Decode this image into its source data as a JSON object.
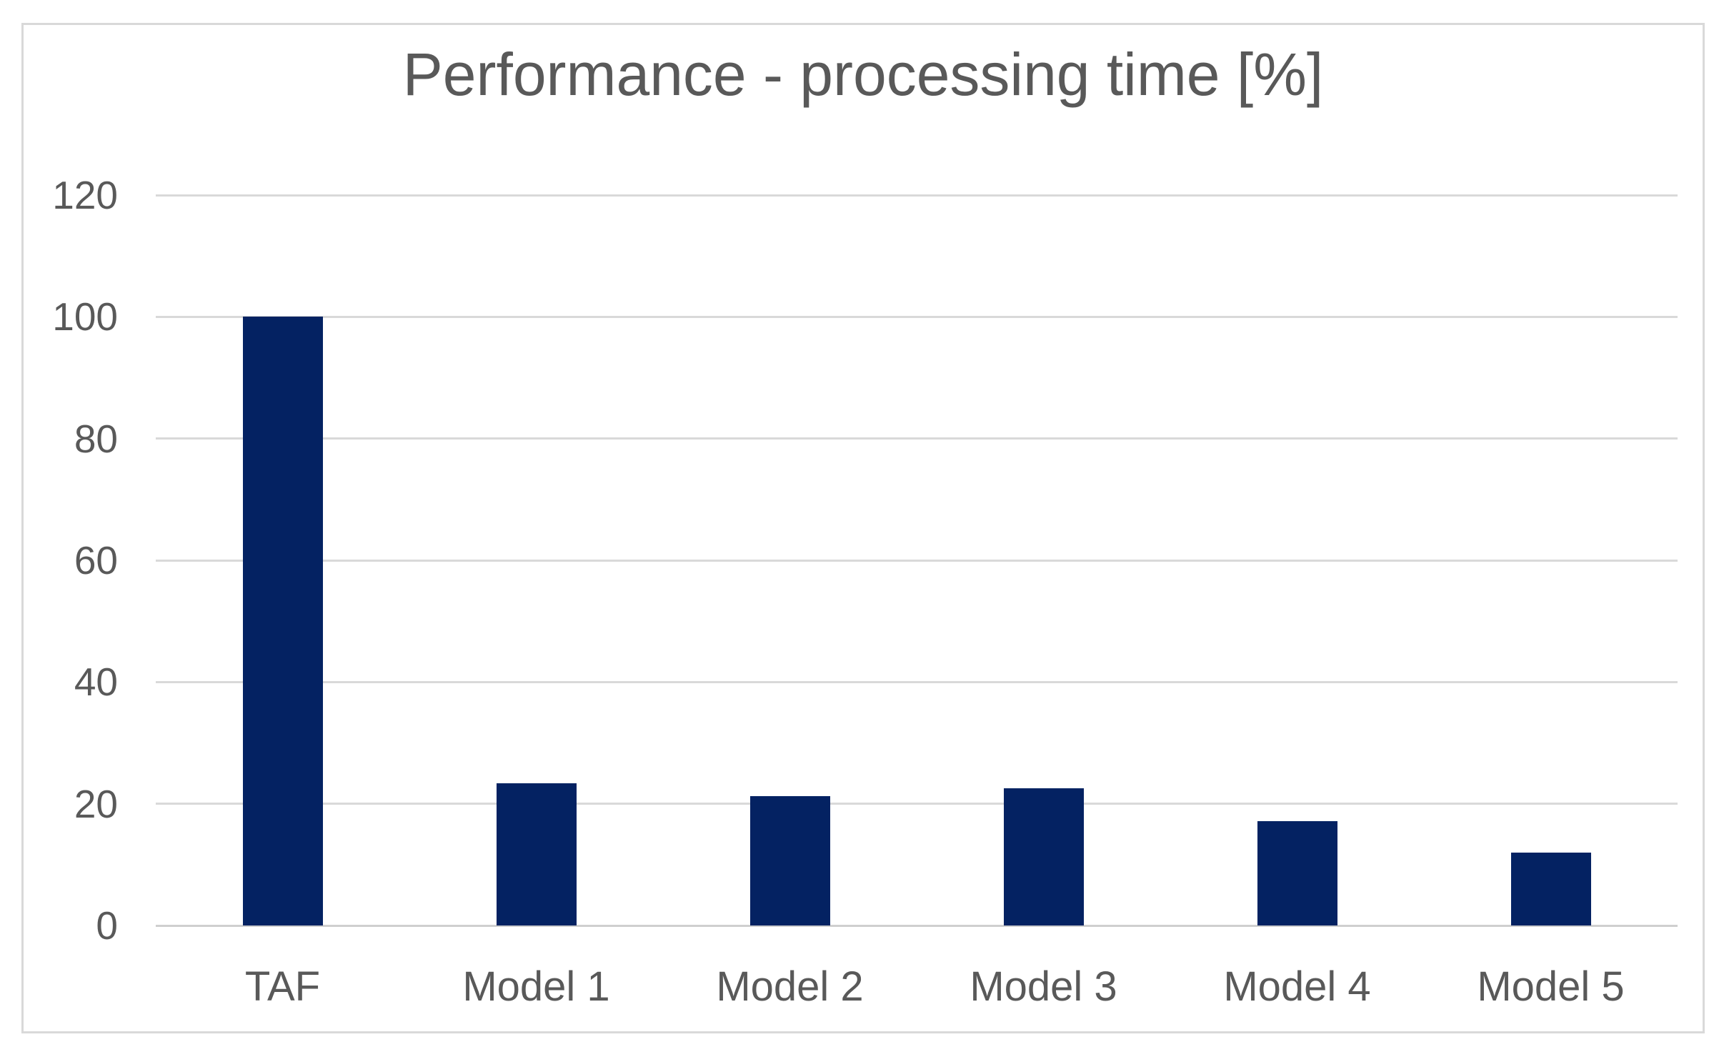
{
  "chart_data": {
    "type": "bar",
    "title": "Performance - processing time [%]",
    "categories": [
      "TAF",
      "Model 1",
      "Model 2",
      "Model 3",
      "Model 4",
      "Model 5"
    ],
    "values": [
      100,
      23.4,
      21.3,
      22.5,
      17.2,
      12
    ],
    "xlabel": "",
    "ylabel": "",
    "ylim": [
      0,
      120
    ],
    "yticks": [
      0,
      20,
      40,
      60,
      80,
      100,
      120
    ],
    "grid": "horizontal",
    "legend": "none",
    "colors": {
      "bar": "#042262",
      "gridline": "#d9d9d9",
      "baseline": "#cfcfcf",
      "title_text": "#595959",
      "axis_text": "#595959",
      "frame_border": "#d9d9d9",
      "background": "#ffffff"
    }
  }
}
